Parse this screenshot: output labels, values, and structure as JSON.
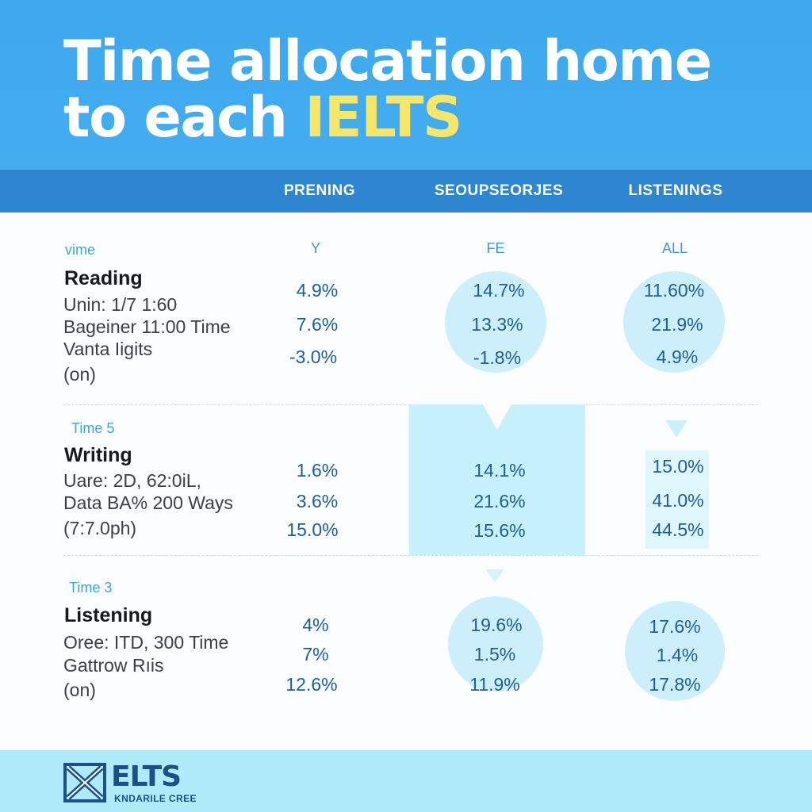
{
  "hero": {
    "line1": "Time allocation home",
    "line2_prefix": "to each ",
    "line2_accent": "IELTS"
  },
  "columns": [
    "PRENING",
    "SEOUPSEORJES",
    "LISTENINGS"
  ],
  "sub_headers": [
    "Y",
    "FE",
    "ALL"
  ],
  "sections": [
    {
      "tag": "vime",
      "title": "Reading",
      "details": [
        "Unin: 1/7 1:60",
        "Bageiner 11:00 Time",
        "Vanta Iigits",
        "(on)"
      ],
      "values": [
        [
          "4.9%",
          "7.6%",
          "-3.0%"
        ],
        [
          "14.7%",
          "13.3%",
          "-1.8%"
        ],
        [
          "11.60%",
          "21.9%",
          "4.9%"
        ]
      ]
    },
    {
      "tag": "Time 5",
      "title": "Writing",
      "details": [
        "Uare: 2D, 62:0iL,",
        "Data BA% 200 Ways",
        "(7:7.0ph)"
      ],
      "values": [
        [
          "1.6%",
          "3.6%",
          "15.0%"
        ],
        [
          "14.1%",
          "21.6%",
          "15.6%"
        ],
        [
          "15.0%",
          "41.0%",
          "44.5%"
        ]
      ]
    },
    {
      "tag": "Time 3",
      "title": "Listening",
      "details": [
        "Oree: ITD, 300 Time",
        "Gattrow Rıis",
        "(on)"
      ],
      "values": [
        [
          "4%",
          "7%",
          "12.6%"
        ],
        [
          "19.6%",
          "1.5%",
          "11.9%"
        ],
        [
          "17.6%",
          "1.4%",
          "17.8%"
        ]
      ]
    }
  ],
  "footer": {
    "logo_text": "ELTS",
    "logo_subtext": "KNDARILE CREE"
  },
  "colors": {
    "hero_blue": "#3ea8ee",
    "header_bar": "#2e86d0",
    "accent_yellow": "#f7e66a",
    "value_text": "#1d5f94",
    "highlight": "#c6f0fc",
    "footer": "#aeeaf9"
  },
  "icons": {
    "logo": "x-cross-logo-icon"
  }
}
